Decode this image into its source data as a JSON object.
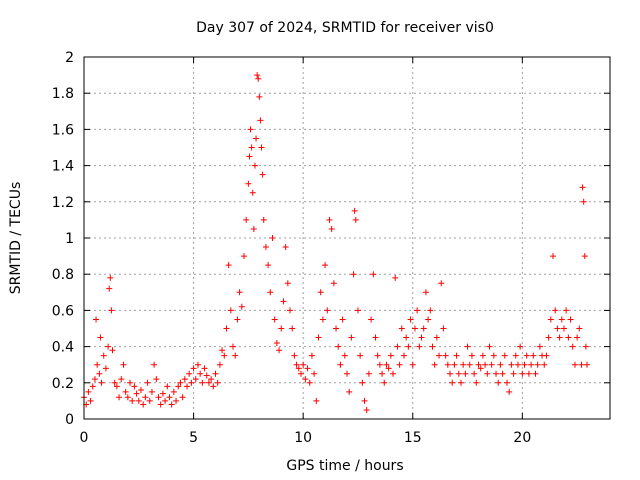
{
  "chart_data": {
    "type": "scatter",
    "title": "Day 307 of 2024, SRMTID for receiver vis0",
    "xlabel": "GPS time / hours",
    "ylabel": "SRMTID / TECUs",
    "xlim": [
      0,
      24
    ],
    "ylim": [
      0,
      2
    ],
    "xticks": [
      0,
      5,
      10,
      15,
      20
    ],
    "yticks": [
      0,
      0.2,
      0.4,
      0.6,
      0.8,
      1,
      1.2,
      1.4,
      1.6,
      1.8,
      2
    ],
    "xtick_labels": [
      "0",
      "5",
      "10",
      "15",
      "20"
    ],
    "ytick_labels": [
      "0",
      "0.2",
      "0.4",
      "0.6",
      "0.8",
      "1",
      "1.2",
      "1.4",
      "1.6",
      "1.8",
      "2"
    ],
    "grid": true,
    "marker": "+",
    "colors": {
      "series": "#ff0000",
      "grid": "#a0a0a0",
      "axis": "#000000"
    },
    "series": [
      {
        "name": "SRMTID",
        "points": [
          [
            0.0,
            0.12
          ],
          [
            0.1,
            0.08
          ],
          [
            0.2,
            0.15
          ],
          [
            0.3,
            0.1
          ],
          [
            0.4,
            0.18
          ],
          [
            0.5,
            0.22
          ],
          [
            0.55,
            0.55
          ],
          [
            0.6,
            0.3
          ],
          [
            0.7,
            0.25
          ],
          [
            0.75,
            0.45
          ],
          [
            0.8,
            0.2
          ],
          [
            0.9,
            0.35
          ],
          [
            1.0,
            0.28
          ],
          [
            1.1,
            0.4
          ],
          [
            1.15,
            0.72
          ],
          [
            1.2,
            0.78
          ],
          [
            1.25,
            0.6
          ],
          [
            1.3,
            0.38
          ],
          [
            1.4,
            0.2
          ],
          [
            1.5,
            0.18
          ],
          [
            1.6,
            0.12
          ],
          [
            1.7,
            0.22
          ],
          [
            1.8,
            0.3
          ],
          [
            1.9,
            0.15
          ],
          [
            2.0,
            0.12
          ],
          [
            2.1,
            0.2
          ],
          [
            2.2,
            0.1
          ],
          [
            2.3,
            0.18
          ],
          [
            2.4,
            0.14
          ],
          [
            2.5,
            0.1
          ],
          [
            2.6,
            0.16
          ],
          [
            2.7,
            0.08
          ],
          [
            2.8,
            0.12
          ],
          [
            2.9,
            0.2
          ],
          [
            3.0,
            0.1
          ],
          [
            3.1,
            0.15
          ],
          [
            3.2,
            0.3
          ],
          [
            3.3,
            0.22
          ],
          [
            3.4,
            0.12
          ],
          [
            3.5,
            0.08
          ],
          [
            3.6,
            0.14
          ],
          [
            3.7,
            0.1
          ],
          [
            3.8,
            0.18
          ],
          [
            3.9,
            0.12
          ],
          [
            4.0,
            0.08
          ],
          [
            4.1,
            0.15
          ],
          [
            4.2,
            0.1
          ],
          [
            4.3,
            0.18
          ],
          [
            4.4,
            0.2
          ],
          [
            4.5,
            0.12
          ],
          [
            4.6,
            0.22
          ],
          [
            4.7,
            0.18
          ],
          [
            4.8,
            0.25
          ],
          [
            4.9,
            0.2
          ],
          [
            5.0,
            0.28
          ],
          [
            5.1,
            0.22
          ],
          [
            5.2,
            0.3
          ],
          [
            5.3,
            0.25
          ],
          [
            5.4,
            0.2
          ],
          [
            5.5,
            0.28
          ],
          [
            5.6,
            0.24
          ],
          [
            5.7,
            0.2
          ],
          [
            5.8,
            0.22
          ],
          [
            5.9,
            0.18
          ],
          [
            6.0,
            0.25
          ],
          [
            6.1,
            0.2
          ],
          [
            6.2,
            0.3
          ],
          [
            6.3,
            0.38
          ],
          [
            6.4,
            0.35
          ],
          [
            6.5,
            0.5
          ],
          [
            6.6,
            0.85
          ],
          [
            6.7,
            0.6
          ],
          [
            6.8,
            0.4
          ],
          [
            6.9,
            0.35
          ],
          [
            7.0,
            0.55
          ],
          [
            7.1,
            0.7
          ],
          [
            7.2,
            0.62
          ],
          [
            7.3,
            0.9
          ],
          [
            7.4,
            1.1
          ],
          [
            7.5,
            1.3
          ],
          [
            7.55,
            1.45
          ],
          [
            7.6,
            1.6
          ],
          [
            7.65,
            1.5
          ],
          [
            7.7,
            1.25
          ],
          [
            7.75,
            1.05
          ],
          [
            7.8,
            1.4
          ],
          [
            7.85,
            1.55
          ],
          [
            7.9,
            1.9
          ],
          [
            7.95,
            1.88
          ],
          [
            8.0,
            1.78
          ],
          [
            8.05,
            1.65
          ],
          [
            8.1,
            1.5
          ],
          [
            8.15,
            1.35
          ],
          [
            8.2,
            1.1
          ],
          [
            8.3,
            0.95
          ],
          [
            8.4,
            0.85
          ],
          [
            8.5,
            0.7
          ],
          [
            8.6,
            1.0
          ],
          [
            8.7,
            0.55
          ],
          [
            8.8,
            0.42
          ],
          [
            8.9,
            0.38
          ],
          [
            9.0,
            0.5
          ],
          [
            9.1,
            0.65
          ],
          [
            9.2,
            0.95
          ],
          [
            9.3,
            0.75
          ],
          [
            9.4,
            0.6
          ],
          [
            9.5,
            0.5
          ],
          [
            9.6,
            0.35
          ],
          [
            9.7,
            0.3
          ],
          [
            9.8,
            0.28
          ],
          [
            9.9,
            0.25
          ],
          [
            10.0,
            0.3
          ],
          [
            10.1,
            0.22
          ],
          [
            10.2,
            0.28
          ],
          [
            10.3,
            0.2
          ],
          [
            10.4,
            0.35
          ],
          [
            10.5,
            0.25
          ],
          [
            10.6,
            0.1
          ],
          [
            10.7,
            0.45
          ],
          [
            10.8,
            0.7
          ],
          [
            10.9,
            0.55
          ],
          [
            11.0,
            0.85
          ],
          [
            11.1,
            0.6
          ],
          [
            11.2,
            1.1
          ],
          [
            11.3,
            1.05
          ],
          [
            11.4,
            0.75
          ],
          [
            11.5,
            0.5
          ],
          [
            11.6,
            0.4
          ],
          [
            11.7,
            0.3
          ],
          [
            11.8,
            0.55
          ],
          [
            11.9,
            0.35
          ],
          [
            12.0,
            0.25
          ],
          [
            12.1,
            0.15
          ],
          [
            12.2,
            0.45
          ],
          [
            12.3,
            0.8
          ],
          [
            12.35,
            1.15
          ],
          [
            12.4,
            1.1
          ],
          [
            12.5,
            0.6
          ],
          [
            12.6,
            0.35
          ],
          [
            12.7,
            0.2
          ],
          [
            12.8,
            0.1
          ],
          [
            12.9,
            0.05
          ],
          [
            13.0,
            0.25
          ],
          [
            13.1,
            0.55
          ],
          [
            13.2,
            0.8
          ],
          [
            13.3,
            0.45
          ],
          [
            13.4,
            0.35
          ],
          [
            13.5,
            0.3
          ],
          [
            13.6,
            0.25
          ],
          [
            13.7,
            0.2
          ],
          [
            13.8,
            0.3
          ],
          [
            13.9,
            0.28
          ],
          [
            14.0,
            0.35
          ],
          [
            14.1,
            0.25
          ],
          [
            14.2,
            0.78
          ],
          [
            14.3,
            0.4
          ],
          [
            14.4,
            0.3
          ],
          [
            14.5,
            0.5
          ],
          [
            14.6,
            0.35
          ],
          [
            14.7,
            0.45
          ],
          [
            14.8,
            0.4
          ],
          [
            14.9,
            0.55
          ],
          [
            15.0,
            0.3
          ],
          [
            15.1,
            0.5
          ],
          [
            15.2,
            0.6
          ],
          [
            15.3,
            0.4
          ],
          [
            15.4,
            0.45
          ],
          [
            15.5,
            0.5
          ],
          [
            15.6,
            0.7
          ],
          [
            15.7,
            0.55
          ],
          [
            15.8,
            0.6
          ],
          [
            15.9,
            0.4
          ],
          [
            16.0,
            0.3
          ],
          [
            16.1,
            0.45
          ],
          [
            16.2,
            0.35
          ],
          [
            16.3,
            0.75
          ],
          [
            16.4,
            0.5
          ],
          [
            16.5,
            0.35
          ],
          [
            16.6,
            0.3
          ],
          [
            16.7,
            0.25
          ],
          [
            16.8,
            0.2
          ],
          [
            16.9,
            0.3
          ],
          [
            17.0,
            0.35
          ],
          [
            17.1,
            0.25
          ],
          [
            17.2,
            0.2
          ],
          [
            17.3,
            0.3
          ],
          [
            17.4,
            0.25
          ],
          [
            17.5,
            0.4
          ],
          [
            17.6,
            0.3
          ],
          [
            17.7,
            0.35
          ],
          [
            17.8,
            0.25
          ],
          [
            17.9,
            0.2
          ],
          [
            18.0,
            0.3
          ],
          [
            18.1,
            0.28
          ],
          [
            18.2,
            0.35
          ],
          [
            18.3,
            0.3
          ],
          [
            18.4,
            0.25
          ],
          [
            18.5,
            0.4
          ],
          [
            18.6,
            0.3
          ],
          [
            18.7,
            0.35
          ],
          [
            18.8,
            0.25
          ],
          [
            18.9,
            0.2
          ],
          [
            19.0,
            0.3
          ],
          [
            19.1,
            0.25
          ],
          [
            19.2,
            0.35
          ],
          [
            19.3,
            0.2
          ],
          [
            19.4,
            0.15
          ],
          [
            19.5,
            0.3
          ],
          [
            19.6,
            0.25
          ],
          [
            19.7,
            0.35
          ],
          [
            19.8,
            0.3
          ],
          [
            19.9,
            0.4
          ],
          [
            20.0,
            0.25
          ],
          [
            20.1,
            0.3
          ],
          [
            20.2,
            0.35
          ],
          [
            20.3,
            0.25
          ],
          [
            20.4,
            0.3
          ],
          [
            20.5,
            0.35
          ],
          [
            20.6,
            0.25
          ],
          [
            20.7,
            0.3
          ],
          [
            20.8,
            0.4
          ],
          [
            20.9,
            0.35
          ],
          [
            21.0,
            0.3
          ],
          [
            21.1,
            0.35
          ],
          [
            21.2,
            0.45
          ],
          [
            21.3,
            0.55
          ],
          [
            21.4,
            0.9
          ],
          [
            21.5,
            0.6
          ],
          [
            21.6,
            0.5
          ],
          [
            21.7,
            0.45
          ],
          [
            21.8,
            0.55
          ],
          [
            21.9,
            0.5
          ],
          [
            22.0,
            0.6
          ],
          [
            22.1,
            0.45
          ],
          [
            22.2,
            0.55
          ],
          [
            22.3,
            0.4
          ],
          [
            22.4,
            0.3
          ],
          [
            22.5,
            0.45
          ],
          [
            22.6,
            0.5
          ],
          [
            22.7,
            0.3
          ],
          [
            22.75,
            1.28
          ],
          [
            22.8,
            1.2
          ],
          [
            22.85,
            0.9
          ],
          [
            22.9,
            0.4
          ],
          [
            22.95,
            0.3
          ]
        ]
      }
    ]
  }
}
